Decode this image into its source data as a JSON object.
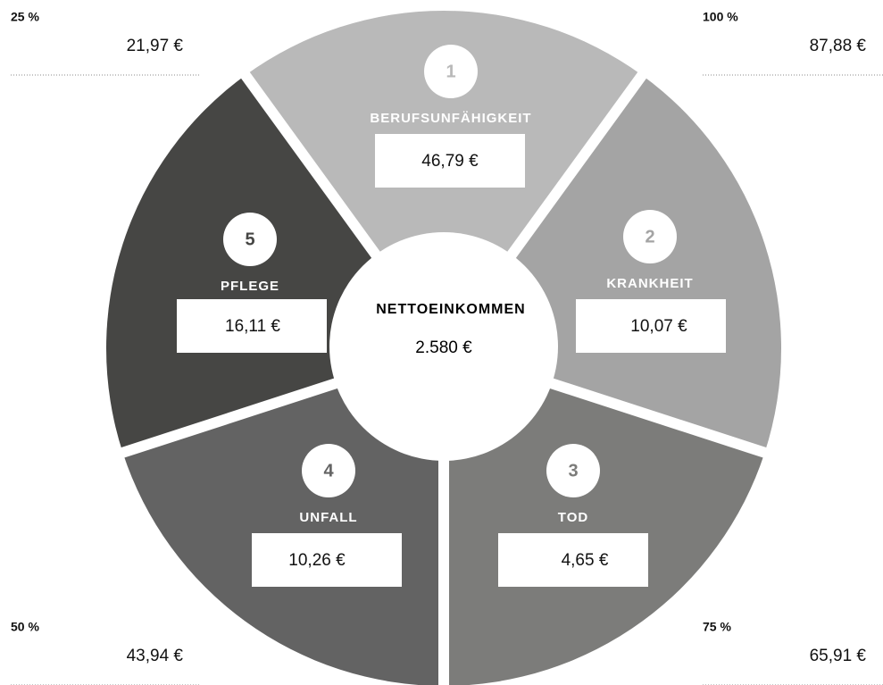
{
  "center": {
    "title": "NETTOEINKOMMEN",
    "value": "2.580 €"
  },
  "segments": [
    {
      "number": "1",
      "label": "BERUFSUNFÄHIGKEIT",
      "value": "46,79 €"
    },
    {
      "number": "2",
      "label": "KRANKHEIT",
      "value": "10,07 €"
    },
    {
      "number": "3",
      "label": "TOD",
      "value": "4,65 €"
    },
    {
      "number": "4",
      "label": "UNFALL",
      "value": "10,26 €"
    },
    {
      "number": "5",
      "label": "PFLEGE",
      "value": "16,11 €"
    }
  ],
  "corners": [
    {
      "percent": "25 %",
      "amount": "21,97 €"
    },
    {
      "percent": "100 %",
      "amount": "87,88 €"
    },
    {
      "percent": "50 %",
      "amount": "43,94 €"
    },
    {
      "percent": "75 %",
      "amount": "65,91 €"
    }
  ]
}
